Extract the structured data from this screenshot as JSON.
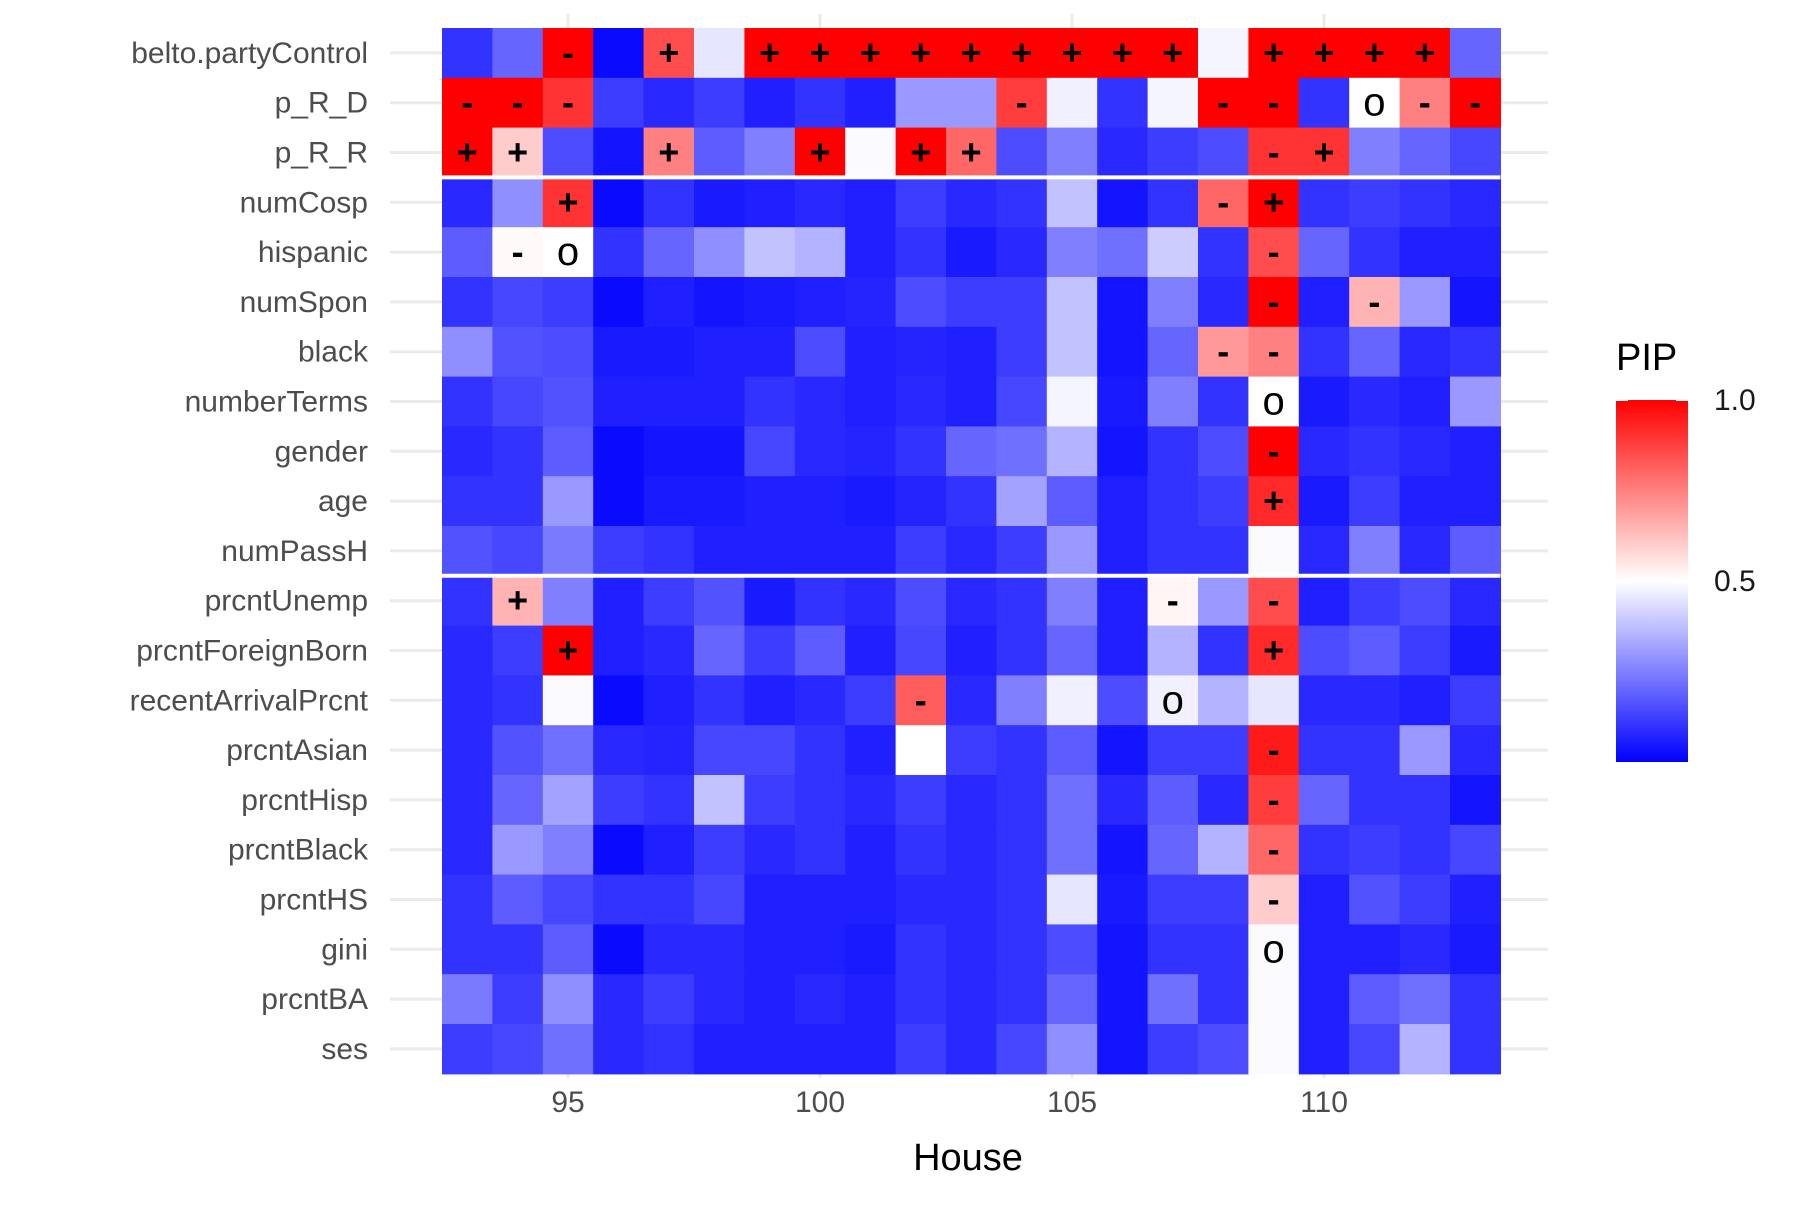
{
  "chart_data": {
    "type": "heatmap",
    "xlabel": "House",
    "x_ticks": [
      "95",
      "100",
      "105",
      "110"
    ],
    "x_tick_values": [
      95,
      100,
      105,
      110
    ],
    "houses": [
      93,
      94,
      95,
      96,
      97,
      98,
      99,
      100,
      101,
      102,
      103,
      104,
      105,
      106,
      107,
      108,
      109,
      110,
      111,
      112,
      113
    ],
    "rows": [
      "belto.partyControl",
      "p_R_D",
      "p_R_R",
      "numCosp",
      "hispanic",
      "numSpon",
      "black",
      "numberTerms",
      "gender",
      "age",
      "numPassH",
      "prcntUnemp",
      "prcntForeignBorn",
      "recentArrivalPrcnt",
      "prcntAsian",
      "prcntHisp",
      "prcntBlack",
      "prcntHS",
      "gini",
      "prcntBA",
      "ses"
    ],
    "group_separators_after_rows": [
      2,
      10
    ],
    "legend": {
      "title": "PIP",
      "min": 0,
      "max": 1.0,
      "ticks": [
        "0.5",
        "1.0"
      ],
      "tick_values": [
        0.5,
        1.0
      ],
      "colors": [
        "#0000ff",
        "#ffffff",
        "#ff0000"
      ]
    },
    "values": [
      [
        0.1,
        0.2,
        1.0,
        0.02,
        0.85,
        0.45,
        1,
        1,
        1,
        1,
        1,
        1,
        1,
        1,
        1,
        0.48,
        1,
        1,
        1,
        1,
        0.2
      ],
      [
        1.0,
        1.0,
        0.9,
        0.12,
        0.08,
        0.12,
        0.06,
        0.1,
        0.06,
        0.3,
        0.3,
        0.88,
        0.47,
        0.1,
        0.48,
        1.0,
        1.0,
        0.1,
        0.5,
        0.75,
        1.0
      ],
      [
        1.0,
        0.6,
        0.15,
        0.04,
        0.75,
        0.18,
        0.25,
        1.0,
        0.49,
        1.0,
        0.8,
        0.15,
        0.25,
        0.08,
        0.12,
        0.15,
        0.9,
        0.9,
        0.25,
        0.2,
        0.14
      ],
      [
        0.08,
        0.28,
        0.9,
        0.02,
        0.1,
        0.05,
        0.06,
        0.08,
        0.06,
        0.12,
        0.08,
        0.1,
        0.38,
        0.04,
        0.1,
        0.8,
        1.0,
        0.1,
        0.12,
        0.1,
        0.08
      ],
      [
        0.18,
        0.51,
        0.5,
        0.1,
        0.2,
        0.28,
        0.38,
        0.35,
        0.06,
        0.1,
        0.05,
        0.08,
        0.25,
        0.22,
        0.4,
        0.1,
        0.85,
        0.2,
        0.1,
        0.06,
        0.06
      ],
      [
        0.1,
        0.14,
        0.12,
        0.02,
        0.06,
        0.04,
        0.05,
        0.06,
        0.07,
        0.15,
        0.12,
        0.12,
        0.38,
        0.04,
        0.25,
        0.08,
        1.0,
        0.06,
        0.65,
        0.3,
        0.04
      ],
      [
        0.28,
        0.16,
        0.15,
        0.05,
        0.05,
        0.06,
        0.06,
        0.15,
        0.06,
        0.07,
        0.06,
        0.12,
        0.38,
        0.04,
        0.2,
        0.7,
        0.75,
        0.1,
        0.2,
        0.08,
        0.1
      ],
      [
        0.1,
        0.14,
        0.16,
        0.06,
        0.06,
        0.06,
        0.1,
        0.08,
        0.06,
        0.08,
        0.06,
        0.14,
        0.48,
        0.05,
        0.25,
        0.1,
        0.5,
        0.05,
        0.08,
        0.06,
        0.3
      ],
      [
        0.08,
        0.1,
        0.18,
        0.02,
        0.04,
        0.04,
        0.14,
        0.08,
        0.07,
        0.1,
        0.2,
        0.22,
        0.35,
        0.04,
        0.1,
        0.15,
        1.0,
        0.08,
        0.1,
        0.08,
        0.06
      ],
      [
        0.1,
        0.1,
        0.3,
        0.02,
        0.05,
        0.05,
        0.06,
        0.06,
        0.05,
        0.07,
        0.1,
        0.32,
        0.18,
        0.06,
        0.1,
        0.12,
        0.92,
        0.05,
        0.12,
        0.06,
        0.06
      ],
      [
        0.16,
        0.14,
        0.24,
        0.12,
        0.1,
        0.06,
        0.06,
        0.06,
        0.06,
        0.12,
        0.08,
        0.12,
        0.3,
        0.06,
        0.1,
        0.1,
        0.49,
        0.08,
        0.25,
        0.08,
        0.18
      ],
      [
        0.1,
        0.65,
        0.25,
        0.06,
        0.12,
        0.16,
        0.05,
        0.1,
        0.08,
        0.15,
        0.08,
        0.1,
        0.25,
        0.06,
        0.52,
        0.3,
        0.85,
        0.06,
        0.12,
        0.15,
        0.08
      ],
      [
        0.08,
        0.12,
        1.0,
        0.06,
        0.08,
        0.2,
        0.12,
        0.18,
        0.06,
        0.14,
        0.06,
        0.1,
        0.2,
        0.06,
        0.35,
        0.1,
        0.92,
        0.15,
        0.18,
        0.12,
        0.05
      ],
      [
        0.08,
        0.1,
        0.49,
        0.02,
        0.06,
        0.1,
        0.06,
        0.08,
        0.12,
        0.82,
        0.08,
        0.25,
        0.47,
        0.15,
        0.47,
        0.35,
        0.45,
        0.08,
        0.08,
        0.06,
        0.12
      ],
      [
        0.08,
        0.16,
        0.22,
        0.08,
        0.07,
        0.14,
        0.14,
        0.1,
        0.06,
        0.5,
        0.12,
        0.1,
        0.18,
        0.04,
        0.12,
        0.12,
        0.95,
        0.1,
        0.1,
        0.3,
        0.08
      ],
      [
        0.08,
        0.2,
        0.32,
        0.12,
        0.1,
        0.38,
        0.12,
        0.1,
        0.08,
        0.12,
        0.08,
        0.1,
        0.22,
        0.08,
        0.18,
        0.08,
        0.88,
        0.2,
        0.1,
        0.1,
        0.04
      ],
      [
        0.08,
        0.3,
        0.25,
        0.02,
        0.06,
        0.12,
        0.08,
        0.1,
        0.06,
        0.1,
        0.08,
        0.1,
        0.22,
        0.04,
        0.2,
        0.35,
        0.8,
        0.1,
        0.12,
        0.1,
        0.14
      ],
      [
        0.1,
        0.18,
        0.14,
        0.1,
        0.1,
        0.14,
        0.06,
        0.06,
        0.06,
        0.08,
        0.08,
        0.1,
        0.45,
        0.05,
        0.12,
        0.12,
        0.6,
        0.06,
        0.16,
        0.12,
        0.06
      ],
      [
        0.1,
        0.1,
        0.18,
        0.02,
        0.08,
        0.08,
        0.06,
        0.06,
        0.05,
        0.1,
        0.08,
        0.1,
        0.15,
        0.04,
        0.1,
        0.1,
        0.49,
        0.06,
        0.06,
        0.08,
        0.05
      ],
      [
        0.24,
        0.12,
        0.28,
        0.08,
        0.12,
        0.08,
        0.06,
        0.08,
        0.06,
        0.1,
        0.08,
        0.1,
        0.2,
        0.04,
        0.22,
        0.1,
        0.49,
        0.06,
        0.18,
        0.22,
        0.1
      ],
      [
        0.12,
        0.14,
        0.22,
        0.08,
        0.1,
        0.06,
        0.06,
        0.06,
        0.06,
        0.12,
        0.08,
        0.14,
        0.28,
        0.04,
        0.12,
        0.15,
        0.49,
        0.06,
        0.14,
        0.35,
        0.1
      ]
    ],
    "annotations": [
      {
        "row": 0,
        "house": 95,
        "label": "-"
      },
      {
        "row": 0,
        "house": 97,
        "label": "+"
      },
      {
        "row": 0,
        "house": 99,
        "label": "+"
      },
      {
        "row": 0,
        "house": 100,
        "label": "+"
      },
      {
        "row": 0,
        "house": 101,
        "label": "+"
      },
      {
        "row": 0,
        "house": 102,
        "label": "+"
      },
      {
        "row": 0,
        "house": 103,
        "label": "+"
      },
      {
        "row": 0,
        "house": 104,
        "label": "+"
      },
      {
        "row": 0,
        "house": 105,
        "label": "+"
      },
      {
        "row": 0,
        "house": 106,
        "label": "+"
      },
      {
        "row": 0,
        "house": 107,
        "label": "+"
      },
      {
        "row": 0,
        "house": 109,
        "label": "+"
      },
      {
        "row": 0,
        "house": 110,
        "label": "+"
      },
      {
        "row": 0,
        "house": 111,
        "label": "+"
      },
      {
        "row": 0,
        "house": 112,
        "label": "+"
      },
      {
        "row": 1,
        "house": 93,
        "label": "-"
      },
      {
        "row": 1,
        "house": 94,
        "label": "-"
      },
      {
        "row": 1,
        "house": 95,
        "label": "-"
      },
      {
        "row": 1,
        "house": 104,
        "label": "-"
      },
      {
        "row": 1,
        "house": 108,
        "label": "-"
      },
      {
        "row": 1,
        "house": 109,
        "label": "-"
      },
      {
        "row": 1,
        "house": 111,
        "label": "o"
      },
      {
        "row": 1,
        "house": 112,
        "label": "-"
      },
      {
        "row": 1,
        "house": 113,
        "label": "-"
      },
      {
        "row": 2,
        "house": 93,
        "label": "+"
      },
      {
        "row": 2,
        "house": 94,
        "label": "+"
      },
      {
        "row": 2,
        "house": 97,
        "label": "+"
      },
      {
        "row": 2,
        "house": 100,
        "label": "+"
      },
      {
        "row": 2,
        "house": 102,
        "label": "+"
      },
      {
        "row": 2,
        "house": 103,
        "label": "+"
      },
      {
        "row": 2,
        "house": 109,
        "label": "-"
      },
      {
        "row": 2,
        "house": 110,
        "label": "+"
      },
      {
        "row": 3,
        "house": 95,
        "label": "+"
      },
      {
        "row": 3,
        "house": 108,
        "label": "-"
      },
      {
        "row": 3,
        "house": 109,
        "label": "+"
      },
      {
        "row": 4,
        "house": 94,
        "label": "-"
      },
      {
        "row": 4,
        "house": 95,
        "label": "o"
      },
      {
        "row": 4,
        "house": 109,
        "label": "-"
      },
      {
        "row": 5,
        "house": 109,
        "label": "-"
      },
      {
        "row": 5,
        "house": 111,
        "label": "-"
      },
      {
        "row": 6,
        "house": 108,
        "label": "-"
      },
      {
        "row": 6,
        "house": 109,
        "label": "-"
      },
      {
        "row": 7,
        "house": 109,
        "label": "o"
      },
      {
        "row": 8,
        "house": 109,
        "label": "-"
      },
      {
        "row": 9,
        "house": 109,
        "label": "+"
      },
      {
        "row": 11,
        "house": 94,
        "label": "+"
      },
      {
        "row": 11,
        "house": 107,
        "label": "-"
      },
      {
        "row": 11,
        "house": 109,
        "label": "-"
      },
      {
        "row": 12,
        "house": 95,
        "label": "+"
      },
      {
        "row": 12,
        "house": 109,
        "label": "+"
      },
      {
        "row": 13,
        "house": 102,
        "label": "-"
      },
      {
        "row": 13,
        "house": 107,
        "label": "o"
      },
      {
        "row": 14,
        "house": 109,
        "label": "-"
      },
      {
        "row": 15,
        "house": 109,
        "label": "-"
      },
      {
        "row": 16,
        "house": 109,
        "label": "-"
      },
      {
        "row": 17,
        "house": 109,
        "label": "-"
      },
      {
        "row": 18,
        "house": 109,
        "label": "o"
      }
    ]
  }
}
